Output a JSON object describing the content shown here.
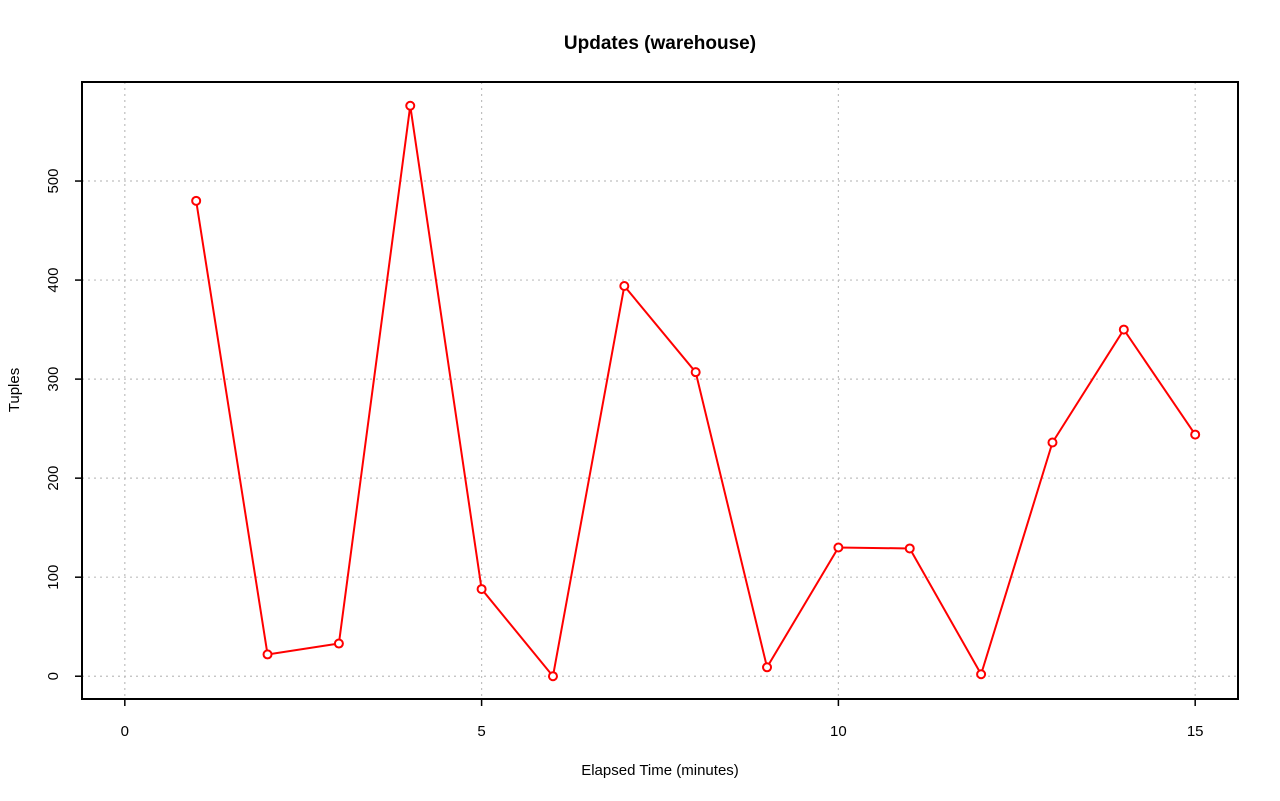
{
  "chart_data": {
    "type": "line",
    "title": "Updates (warehouse)",
    "xlabel": "Elapsed Time (minutes)",
    "ylabel": "Tuples",
    "xlim": [
      -0.6,
      15.6
    ],
    "ylim": [
      -23,
      600
    ],
    "xticks": [
      0,
      5,
      10,
      15
    ],
    "yticks": [
      0,
      100,
      200,
      300,
      400,
      500
    ],
    "grid": true,
    "series": [
      {
        "color": "#ff0000",
        "x": [
          1,
          2,
          3,
          4,
          5,
          6,
          7,
          8,
          9,
          10,
          11,
          12,
          13,
          14,
          15
        ],
        "y": [
          480,
          22,
          33,
          576,
          88,
          0,
          394,
          307,
          9,
          130,
          129,
          2,
          236,
          350,
          244
        ]
      }
    ]
  }
}
